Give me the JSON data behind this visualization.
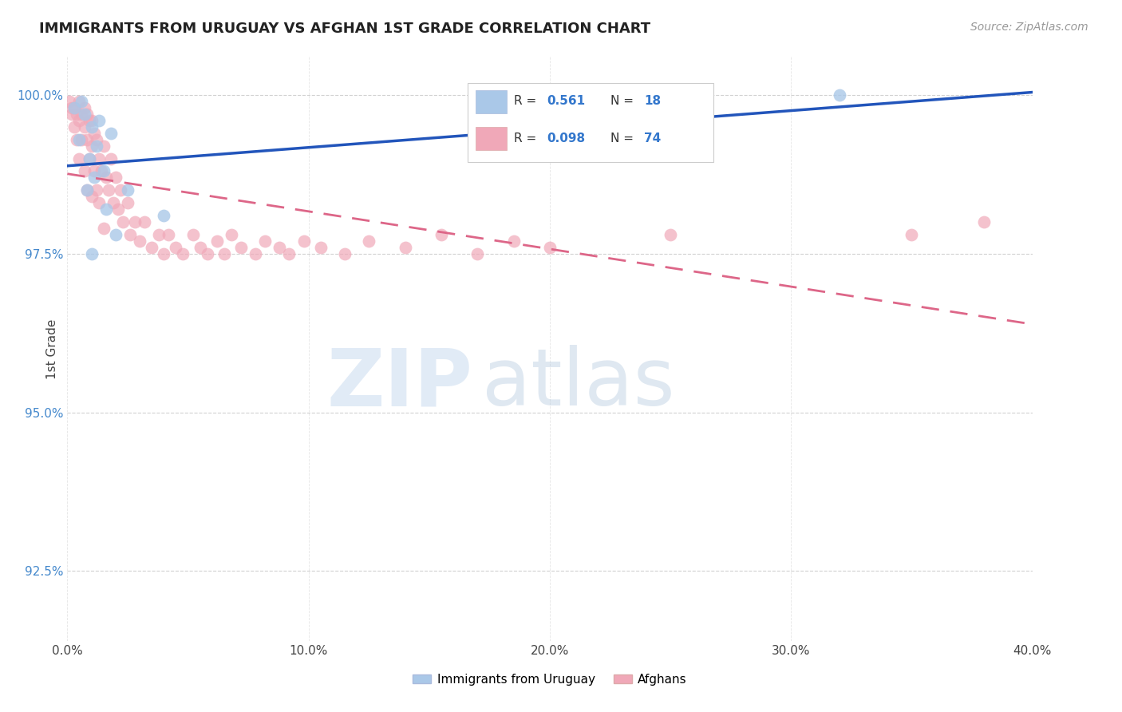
{
  "title": "IMMIGRANTS FROM URUGUAY VS AFGHAN 1ST GRADE CORRELATION CHART",
  "source_text": "Source: ZipAtlas.com",
  "ylabel": "1st Grade",
  "xlim": [
    0.0,
    0.4
  ],
  "ylim": [
    0.914,
    1.006
  ],
  "xticks": [
    0.0,
    0.1,
    0.2,
    0.3,
    0.4
  ],
  "xtick_labels": [
    "0.0%",
    "10.0%",
    "20.0%",
    "30.0%",
    "40.0%"
  ],
  "yticks": [
    0.925,
    0.95,
    0.975,
    1.0
  ],
  "ytick_labels": [
    "92.5%",
    "95.0%",
    "97.5%",
    "100.0%"
  ],
  "watermark_zip": "ZIP",
  "watermark_atlas": "atlas",
  "legend_r_uruguay": "0.561",
  "legend_n_uruguay": "18",
  "legend_r_afghan": "0.098",
  "legend_n_afghan": "74",
  "color_uruguay": "#aac8e8",
  "color_afghan": "#f0a8b8",
  "line_color_uruguay": "#2255bb",
  "line_color_afghan": "#dd6688",
  "background_color": "#ffffff",
  "grid_color": "#cccccc",
  "uruguay_scatter_x": [
    0.003,
    0.005,
    0.006,
    0.007,
    0.008,
    0.009,
    0.01,
    0.01,
    0.011,
    0.012,
    0.013,
    0.015,
    0.016,
    0.018,
    0.02,
    0.025,
    0.04,
    0.32
  ],
  "uruguay_scatter_y": [
    0.998,
    0.993,
    0.999,
    0.997,
    0.985,
    0.99,
    0.975,
    0.995,
    0.987,
    0.992,
    0.996,
    0.988,
    0.982,
    0.994,
    0.978,
    0.985,
    0.981,
    1.0
  ],
  "afghan_scatter_x": [
    0.001,
    0.002,
    0.002,
    0.003,
    0.003,
    0.004,
    0.004,
    0.005,
    0.005,
    0.005,
    0.006,
    0.006,
    0.007,
    0.007,
    0.007,
    0.008,
    0.008,
    0.008,
    0.009,
    0.009,
    0.01,
    0.01,
    0.01,
    0.011,
    0.011,
    0.012,
    0.012,
    0.013,
    0.013,
    0.014,
    0.015,
    0.015,
    0.016,
    0.017,
    0.018,
    0.019,
    0.02,
    0.021,
    0.022,
    0.023,
    0.025,
    0.026,
    0.028,
    0.03,
    0.032,
    0.035,
    0.038,
    0.04,
    0.042,
    0.045,
    0.048,
    0.052,
    0.055,
    0.058,
    0.062,
    0.065,
    0.068,
    0.072,
    0.078,
    0.082,
    0.088,
    0.092,
    0.098,
    0.105,
    0.115,
    0.125,
    0.14,
    0.155,
    0.17,
    0.185,
    0.2,
    0.25,
    0.35,
    0.38
  ],
  "afghan_scatter_y": [
    0.999,
    0.998,
    0.997,
    0.998,
    0.995,
    0.997,
    0.993,
    0.999,
    0.996,
    0.99,
    0.997,
    0.993,
    0.998,
    0.995,
    0.988,
    0.997,
    0.993,
    0.985,
    0.996,
    0.99,
    0.996,
    0.992,
    0.984,
    0.994,
    0.988,
    0.993,
    0.985,
    0.99,
    0.983,
    0.988,
    0.992,
    0.979,
    0.987,
    0.985,
    0.99,
    0.983,
    0.987,
    0.982,
    0.985,
    0.98,
    0.983,
    0.978,
    0.98,
    0.977,
    0.98,
    0.976,
    0.978,
    0.975,
    0.978,
    0.976,
    0.975,
    0.978,
    0.976,
    0.975,
    0.977,
    0.975,
    0.978,
    0.976,
    0.975,
    0.977,
    0.976,
    0.975,
    0.977,
    0.976,
    0.975,
    0.977,
    0.976,
    0.978,
    0.975,
    0.977,
    0.976,
    0.978,
    0.978,
    0.98
  ],
  "uru_line_x": [
    0.0,
    0.4
  ],
  "afg_line_x": [
    0.0,
    0.4
  ]
}
